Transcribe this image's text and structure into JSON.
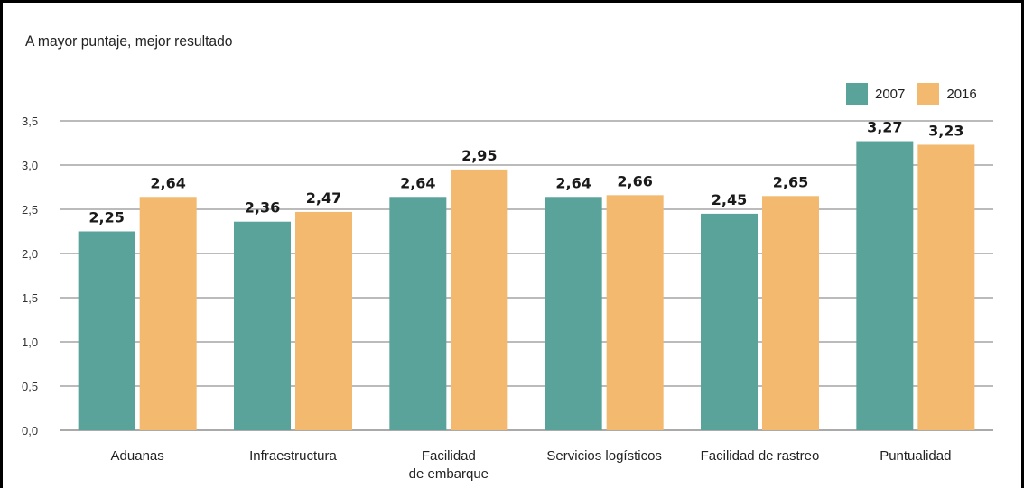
{
  "chart_data": {
    "type": "bar",
    "subtitle": "A mayor puntaje, mejor resultado",
    "categories": [
      [
        "Aduanas"
      ],
      [
        "Infraestructura"
      ],
      [
        "Facilidad",
        "de embarque"
      ],
      [
        "Servicios logísticos"
      ],
      [
        "Facilidad de rastreo"
      ],
      [
        "Puntualidad"
      ]
    ],
    "series": [
      {
        "name": "2007",
        "color": "#5aa39a",
        "values": [
          2.25,
          2.36,
          2.64,
          2.64,
          2.45,
          3.27
        ],
        "labels": [
          "2,25",
          "2,36",
          "2,64",
          "2,64",
          "2,45",
          "3,27"
        ]
      },
      {
        "name": "2016",
        "color": "#f2b96f",
        "values": [
          2.64,
          2.47,
          2.95,
          2.66,
          2.65,
          3.23
        ],
        "labels": [
          "2,64",
          "2,47",
          "2,95",
          "2,66",
          "2,65",
          "3,23"
        ]
      }
    ],
    "ylim": [
      0,
      3.5
    ],
    "yticks": [
      0,
      0.5,
      1.0,
      1.5,
      2.0,
      2.5,
      3.0,
      3.5
    ],
    "ytick_labels": [
      "0,0",
      "0,5",
      "1,0",
      "1,5",
      "2,0",
      "2,5",
      "3,0",
      "3,5"
    ],
    "grid": true,
    "legend": "top-right"
  }
}
